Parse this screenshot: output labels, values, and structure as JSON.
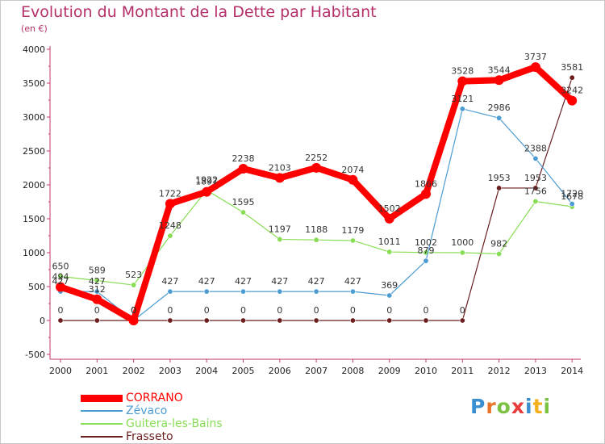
{
  "title": "Evolution du Montant de la Dette par Habitant",
  "subtitle": "(en €)",
  "logo_text": "Proxiti",
  "chart_data": {
    "type": "line",
    "title": "Evolution du Montant de la Dette par Habitant",
    "ylabel": "(en €)",
    "xlabel": "",
    "ylim": [
      -500,
      4000
    ],
    "y_ticks": [
      -500,
      0,
      500,
      1000,
      1500,
      2000,
      2500,
      3000,
      3500,
      4000
    ],
    "grid": false,
    "legend_position": "bottom-left",
    "categories": [
      "2000",
      "2001",
      "2002",
      "2003",
      "2004",
      "2005",
      "2006",
      "2007",
      "2008",
      "2009",
      "2010",
      "2011",
      "2012",
      "2013",
      "2014"
    ],
    "series": [
      {
        "name": "CORRANO",
        "color": "#ff0000",
        "values": [
          494,
          312,
          0,
          1722,
          1897,
          2238,
          2103,
          2252,
          2074,
          1502,
          1866,
          3528,
          3544,
          3737,
          3242
        ],
        "labels": [
          "494",
          "312",
          "0",
          "1722",
          "1897",
          "2238",
          "2103",
          "2252",
          "2074",
          "1502",
          "1866",
          "3528",
          "3544",
          "3737",
          "3242"
        ]
      },
      {
        "name": "Zévaco",
        "color": "#4b9cd3",
        "values": [
          427,
          427,
          0,
          427,
          427,
          427,
          427,
          427,
          427,
          369,
          879,
          3121,
          2986,
          2388,
          1720
        ],
        "labels": [
          "427",
          "427",
          "0",
          "427",
          "427",
          "427",
          "427",
          "427",
          "427",
          "369",
          "879",
          "3121",
          "2986",
          "2388",
          "1720"
        ]
      },
      {
        "name": "Guitera-les-Bains",
        "color": "#88dd55",
        "values": [
          650,
          589,
          523,
          1248,
          1922,
          1595,
          1197,
          1188,
          1179,
          1011,
          1002,
          1000,
          982,
          1756,
          1678
        ],
        "labels": [
          "650",
          "589",
          "523",
          "1248",
          "1922",
          "1595",
          "1197",
          "1188",
          "1179",
          "1011",
          "1002",
          "1000",
          "982",
          "1756",
          "1678"
        ]
      },
      {
        "name": "Frasseto",
        "color": "#6b1f1f",
        "values": [
          0,
          0,
          0,
          0,
          0,
          0,
          0,
          0,
          0,
          0,
          0,
          0,
          1953,
          1953,
          3581
        ],
        "labels": [
          "0",
          "0",
          "0",
          "0",
          "0",
          "0",
          "0",
          "0",
          "0",
          "0",
          "0",
          "0",
          "1953",
          "1953",
          "3581"
        ]
      }
    ]
  }
}
